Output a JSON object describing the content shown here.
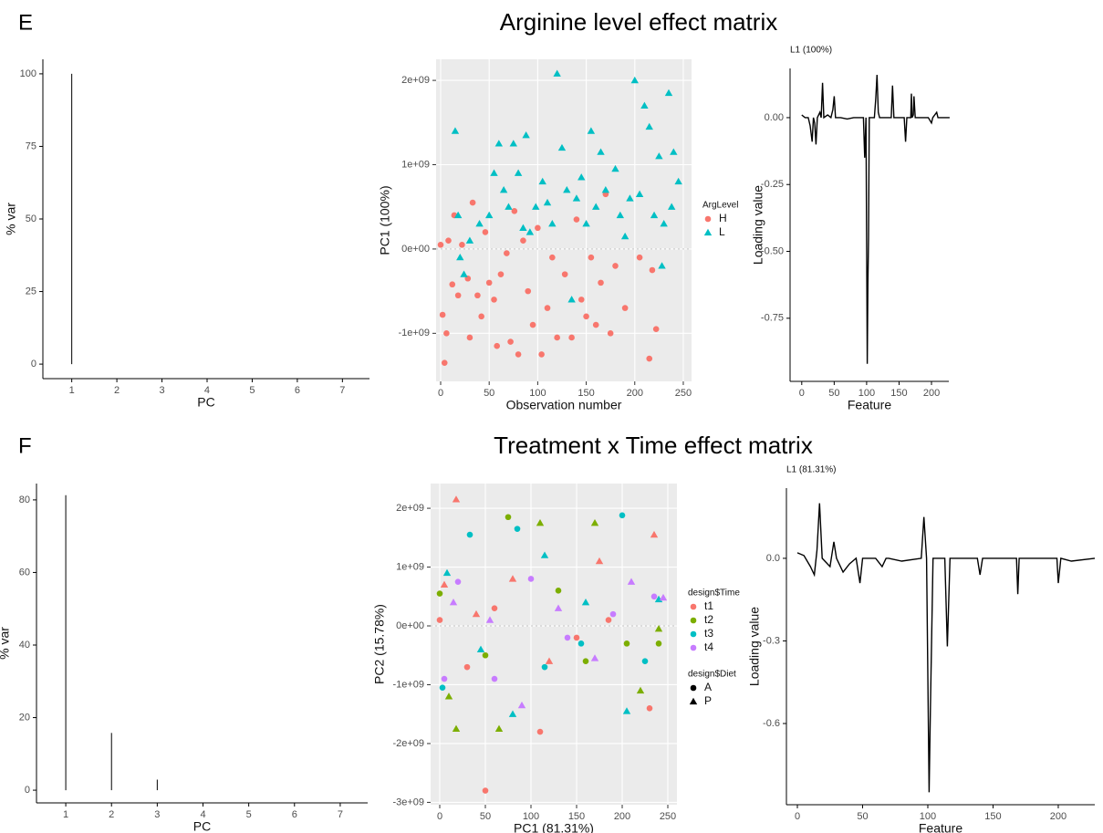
{
  "panels": [
    {
      "label": "E",
      "title": "Arginine level effect matrix"
    },
    {
      "label": "F",
      "title": "Treatment x Time effect matrix"
    }
  ],
  "chart_data": [
    {
      "type": "spike",
      "theme": "classic",
      "x": [
        1,
        2,
        3,
        4,
        5,
        6,
        7
      ],
      "values": [
        100,
        0,
        0,
        0,
        0,
        0,
        0
      ],
      "color": "#000000",
      "xlim": [
        0.36,
        7.6
      ],
      "xticks": [
        1,
        2,
        3,
        4,
        5,
        6,
        7
      ],
      "ylim": [
        -5,
        105
      ],
      "yticks": [
        0,
        25,
        50,
        75,
        100
      ],
      "xlabel": "PC",
      "ylabel": "% var"
    },
    {
      "type": "scatter",
      "theme": "gray",
      "grid": true,
      "hline": 0,
      "xlim": [
        -4.7,
        258.5
      ],
      "xticks": [
        0,
        50,
        100,
        150,
        200,
        250
      ],
      "ylim": [
        -1570000000.0,
        2250000000.0
      ],
      "yticks": [
        {
          "value": -1000000000.0,
          "label": "-1e+09"
        },
        {
          "value": 0,
          "label": "0e+00"
        },
        {
          "value": 1000000000.0,
          "label": "1e+09"
        },
        {
          "value": 2000000000.0,
          "label": "2e+09"
        }
      ],
      "xlabel": "Observation number",
      "ylabel": "PC1 (100%)",
      "legend_title": "ArgLevel",
      "series": [
        {
          "name": "H",
          "color": "#F8766D",
          "shape": "circle",
          "x": [
            0,
            2,
            4,
            6,
            8,
            12,
            14,
            18,
            22,
            28,
            30,
            33,
            38,
            42,
            46,
            50,
            55,
            58,
            62,
            68,
            72,
            76,
            80,
            85,
            90,
            95,
            100,
            104,
            110,
            115,
            120,
            128,
            135,
            140,
            145,
            150,
            155,
            160,
            165,
            170,
            175,
            180,
            190,
            205,
            215,
            218,
            222
          ],
          "values": [
            50000000.0,
            -780000000.0,
            -1350000000.0,
            -1000000000.0,
            100000000.0,
            -420000000.0,
            400000000.0,
            -550000000.0,
            50000000.0,
            -350000000.0,
            -1050000000.0,
            550000000.0,
            -550000000.0,
            -800000000.0,
            200000000.0,
            -400000000.0,
            -600000000.0,
            -1150000000.0,
            -300000000.0,
            -50000000.0,
            -1100000000.0,
            450000000.0,
            -1250000000.0,
            100000000.0,
            -500000000.0,
            -900000000.0,
            250000000.0,
            -1250000000.0,
            -700000000.0,
            -100000000.0,
            -1050000000.0,
            -300000000.0,
            -1050000000.0,
            350000000.0,
            -600000000.0,
            -800000000.0,
            -100000000.0,
            -900000000.0,
            -400000000.0,
            650000000.0,
            -1000000000.0,
            -200000000.0,
            -700000000.0,
            -100000000.0,
            -1300000000.0,
            -250000000.0,
            -950000000.0
          ]
        },
        {
          "name": "L",
          "color": "#00BFC4",
          "shape": "triangle",
          "x": [
            15,
            18,
            20,
            24,
            30,
            40,
            50,
            55,
            60,
            65,
            70,
            75,
            80,
            85,
            88,
            92,
            98,
            105,
            110,
            115,
            120,
            125,
            130,
            135,
            140,
            145,
            150,
            155,
            160,
            165,
            170,
            180,
            185,
            190,
            195,
            200,
            205,
            210,
            215,
            220,
            225,
            228,
            230,
            235,
            238,
            240,
            245
          ],
          "values": [
            1400000000.0,
            400000000.0,
            -100000000.0,
            -300000000.0,
            100000000.0,
            300000000.0,
            400000000.0,
            900000000.0,
            1250000000.0,
            700000000.0,
            500000000.0,
            1250000000.0,
            900000000.0,
            250000000.0,
            1350000000.0,
            200000000.0,
            500000000.0,
            800000000.0,
            550000000.0,
            300000000.0,
            2080000000.0,
            1200000000.0,
            700000000.0,
            -600000000.0,
            600000000.0,
            850000000.0,
            300000000.0,
            1400000000.0,
            500000000.0,
            1150000000.0,
            700000000.0,
            950000000.0,
            400000000.0,
            150000000.0,
            600000000.0,
            2000000000.0,
            650000000.0,
            1700000000.0,
            1450000000.0,
            400000000.0,
            1100000000.0,
            -200000000.0,
            300000000.0,
            1850000000.0,
            500000000.0,
            1150000000.0,
            800000000.0
          ]
        }
      ]
    },
    {
      "type": "line",
      "theme": "classic",
      "subtitle": "L1 (100%)",
      "color": "#000000",
      "xlim": [
        -18,
        226.7
      ],
      "xticks": [
        0,
        50,
        100,
        150,
        200
      ],
      "ylim": [
        -0.986,
        0.184
      ],
      "yticks": [
        {
          "value": -0.75,
          "label": "-0.75"
        },
        {
          "value": -0.5,
          "label": "-0.50"
        },
        {
          "value": -0.25,
          "label": "-0.25"
        },
        {
          "value": 0,
          "label": "0.00"
        }
      ],
      "xlabel": "Feature",
      "ylabel": "Loading value",
      "x": [
        0,
        5,
        10,
        13,
        16,
        18,
        20,
        22,
        24,
        28,
        30,
        32,
        34,
        40,
        45,
        48,
        50,
        52,
        60,
        70,
        80,
        95,
        97,
        99,
        101,
        102,
        103,
        104,
        112,
        114,
        116,
        118,
        120,
        138,
        140,
        142,
        158,
        160,
        162,
        168,
        169,
        170,
        172,
        173,
        175,
        195,
        200,
        202,
        208,
        210,
        228
      ],
      "values": [
        0.01,
        0,
        0,
        -0.03,
        -0.09,
        0,
        -0.02,
        -0.1,
        0,
        0.02,
        0,
        0.13,
        0,
        0.01,
        0,
        0.03,
        0.08,
        0,
        0,
        -0.005,
        0,
        0,
        -0.15,
        0,
        -0.92,
        -0.62,
        -0.45,
        0,
        0,
        0.07,
        0.16,
        0.02,
        0,
        0,
        0.12,
        0,
        0,
        -0.09,
        0,
        0,
        0.09,
        0,
        0.01,
        0.08,
        0,
        0,
        -0.02,
        0,
        0.02,
        0,
        0
      ]
    },
    {
      "type": "spike",
      "theme": "classic",
      "x": [
        1,
        2,
        3,
        4,
        5,
        6,
        7
      ],
      "values": [
        81.31,
        15.78,
        2.91,
        0,
        0,
        0,
        0
      ],
      "color": "#000000",
      "xlim": [
        0.36,
        7.6
      ],
      "xticks": [
        1,
        2,
        3,
        4,
        5,
        6,
        7
      ],
      "ylim": [
        -3.5,
        84.5
      ],
      "yticks": [
        0,
        20,
        40,
        60,
        80
      ],
      "xlabel": "PC",
      "ylabel": "% var"
    },
    {
      "type": "scatter",
      "theme": "gray",
      "grid": true,
      "hline": 0,
      "xlim": [
        -10,
        260
      ],
      "xticks": [
        0,
        50,
        100,
        150,
        200,
        250
      ],
      "ylim": [
        -3040000000.0,
        2420000000.0
      ],
      "yticks": [
        {
          "value": -3000000000.0,
          "label": "-3e+09"
        },
        {
          "value": -2000000000.0,
          "label": "-2e+09"
        },
        {
          "value": -1000000000.0,
          "label": "-1e+09"
        },
        {
          "value": 0,
          "label": "0e+00"
        },
        {
          "value": 1000000000.0,
          "label": "1e+09"
        },
        {
          "value": 2000000000.0,
          "label": "2e+09"
        }
      ],
      "xlabel": "PC1 (81.31%)",
      "ylabel": "PC2 (15.78%)",
      "legends": [
        {
          "title": "design$Time",
          "entries": [
            {
              "name": "t1",
              "color": "#F8766D"
            },
            {
              "name": "t2",
              "color": "#7CAE00"
            },
            {
              "name": "t3",
              "color": "#00BFC4"
            },
            {
              "name": "t4",
              "color": "#C77CFF"
            }
          ]
        },
        {
          "title": "design$Diet",
          "entries": [
            {
              "name": "A",
              "shape": "circle"
            },
            {
              "name": "P",
              "shape": "triangle"
            }
          ]
        }
      ],
      "series": [
        {
          "time": "t1",
          "diet": "A",
          "x": [
            0,
            30,
            60,
            110,
            150,
            185,
            230,
            50
          ],
          "values": [
            100000000.0,
            -700000000.0,
            300000000.0,
            -1800000000.0,
            -200000000.0,
            100000000.0,
            -1400000000.0,
            -2800000000.0
          ]
        },
        {
          "time": "t1",
          "diet": "P",
          "x": [
            5,
            18,
            40,
            80,
            120,
            175,
            235
          ],
          "values": [
            700000000.0,
            2150000000.0,
            200000000.0,
            800000000.0,
            -600000000.0,
            1100000000.0,
            1550000000.0
          ]
        },
        {
          "time": "t2",
          "diet": "A",
          "x": [
            0,
            50,
            75,
            130,
            160,
            205,
            240
          ],
          "values": [
            550000000.0,
            -500000000.0,
            1850000000.0,
            600000000.0,
            -600000000.0,
            -300000000.0,
            -300000000.0
          ]
        },
        {
          "time": "t2",
          "diet": "P",
          "x": [
            10,
            18,
            65,
            110,
            170,
            220,
            240
          ],
          "values": [
            -1200000000.0,
            -1750000000.0,
            -1750000000.0,
            1750000000.0,
            1750000000.0,
            -1100000000.0,
            -50000000.0
          ]
        },
        {
          "time": "t3",
          "diet": "A",
          "x": [
            3,
            33,
            85,
            115,
            155,
            200,
            225
          ],
          "values": [
            -1050000000.0,
            1550000000.0,
            1650000000.0,
            -700000000.0,
            -300000000.0,
            1880000000.0,
            -600000000.0
          ]
        },
        {
          "time": "t3",
          "diet": "P",
          "x": [
            8,
            45,
            80,
            115,
            160,
            205,
            240
          ],
          "values": [
            900000000.0,
            -400000000.0,
            -1500000000.0,
            1200000000.0,
            400000000.0,
            -1450000000.0,
            450000000.0
          ]
        },
        {
          "time": "t4",
          "diet": "A",
          "x": [
            5,
            20,
            60,
            100,
            140,
            190,
            235
          ],
          "values": [
            -900000000.0,
            750000000.0,
            -900000000.0,
            800000000.0,
            -200000000.0,
            200000000.0,
            500000000.0
          ]
        },
        {
          "time": "t4",
          "diet": "P",
          "x": [
            15,
            55,
            90,
            130,
            170,
            210,
            245
          ],
          "values": [
            400000000.0,
            100000000.0,
            -1350000000.0,
            300000000.0,
            -550000000.0,
            750000000.0,
            480000000.0
          ]
        }
      ]
    },
    {
      "type": "line",
      "theme": "classic",
      "subtitle": "L1 (81.31%)",
      "color": "#000000",
      "xlim": [
        -8.4,
        228
      ],
      "xticks": [
        0,
        50,
        100,
        150,
        200
      ],
      "ylim": [
        -0.895,
        0.255
      ],
      "yticks": [
        {
          "value": -0.6,
          "label": "-0.6"
        },
        {
          "value": -0.3,
          "label": "-0.3"
        },
        {
          "value": 0,
          "label": "0.0"
        }
      ],
      "xlabel": "Feature",
      "ylabel": "Loading value",
      "x": [
        0,
        5,
        10,
        13,
        15,
        17,
        19,
        25,
        28,
        30,
        35,
        40,
        45,
        48,
        50,
        60,
        65,
        68,
        70,
        80,
        95,
        97,
        99,
        101,
        102,
        104,
        113,
        115,
        117,
        138,
        140,
        142,
        168,
        169,
        170,
        185,
        199,
        200,
        202,
        210,
        228
      ],
      "values": [
        0.02,
        0.01,
        -0.03,
        -0.06,
        0.03,
        0.2,
        0,
        -0.03,
        0.06,
        0,
        -0.05,
        -0.02,
        0,
        -0.09,
        0,
        0,
        -0.03,
        0,
        0,
        -0.01,
        0,
        0.15,
        0,
        -0.85,
        -0.55,
        0,
        0,
        -0.32,
        0,
        0,
        -0.06,
        0,
        0,
        -0.13,
        0,
        0,
        0,
        -0.09,
        0,
        -0.01,
        0
      ]
    }
  ]
}
